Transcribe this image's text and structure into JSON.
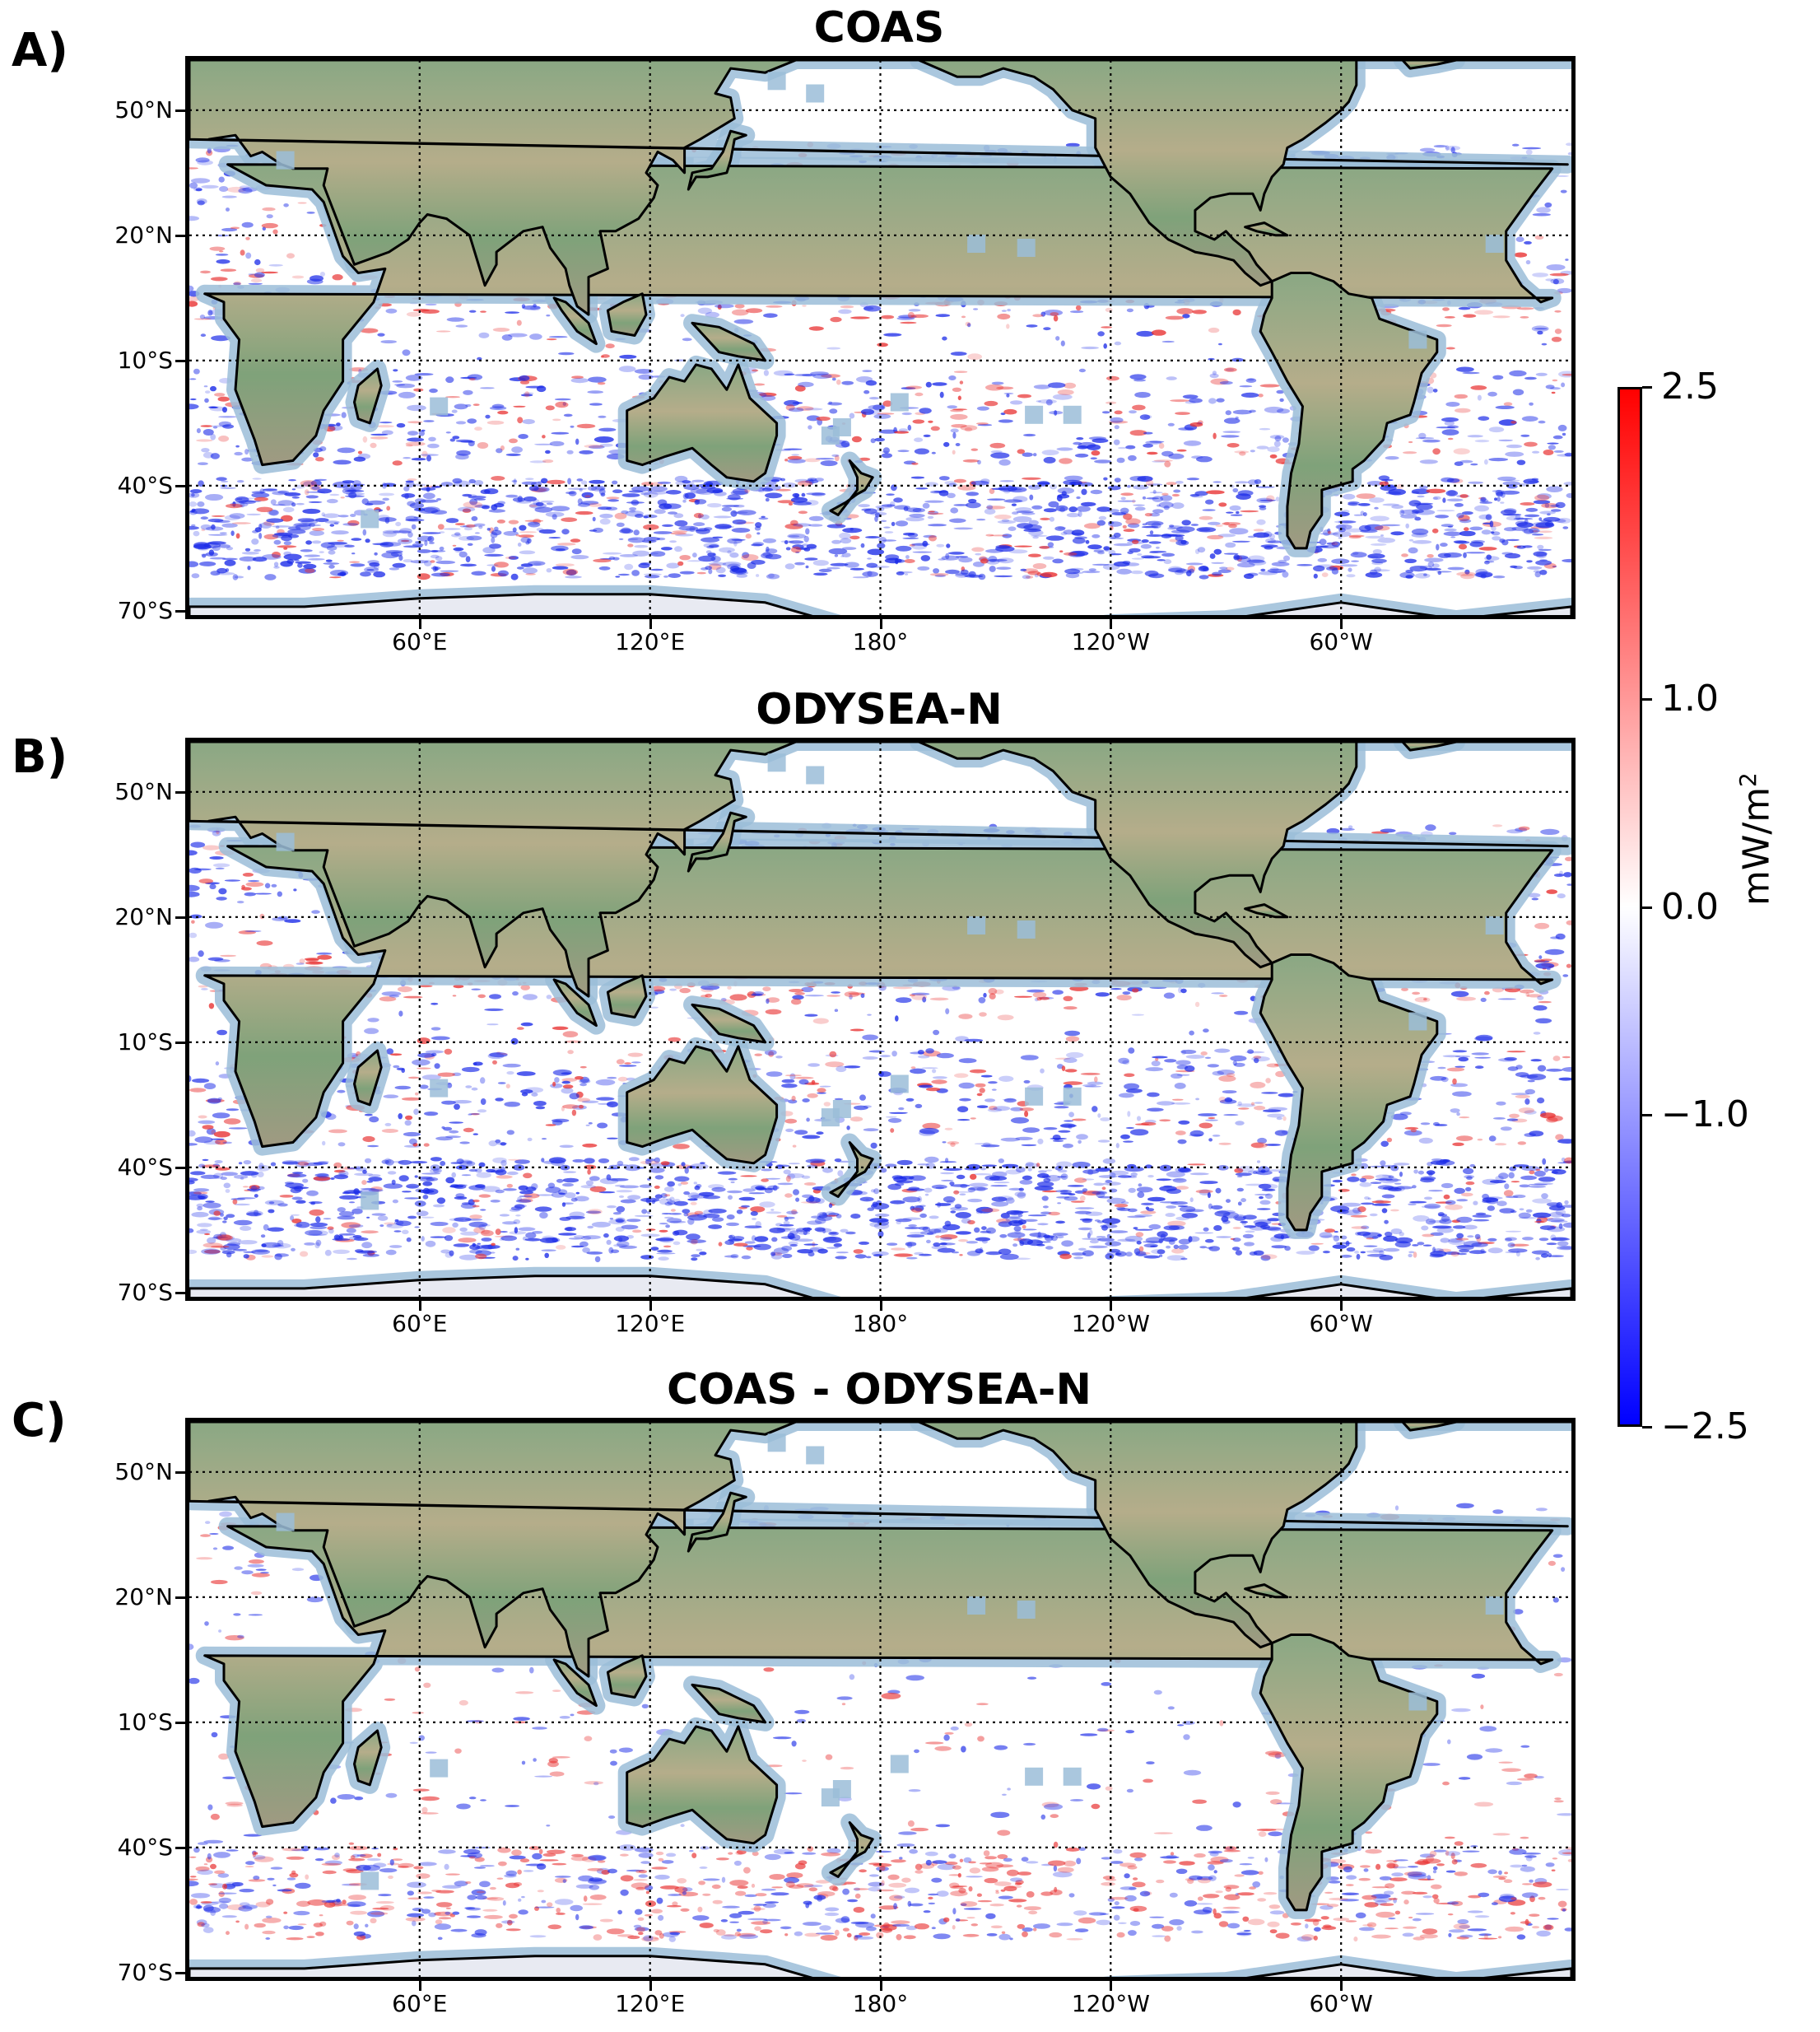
{
  "figure": {
    "panels": [
      {
        "letter": "A)",
        "title": "COAS",
        "field": "A"
      },
      {
        "letter": "B)",
        "title": "ODYSEA-N",
        "field": "B"
      },
      {
        "letter": "C)",
        "title": "COAS - ODYSEA-N",
        "field": "C"
      }
    ],
    "lat_labels": [
      "50°N",
      "20°N",
      "10°S",
      "40°S",
      "70°S"
    ],
    "lon_labels": [
      "60°E",
      "120°E",
      "180°",
      "120°W",
      "60°W"
    ],
    "colorbar": {
      "ticks": [
        "2.5",
        "1.0",
        "0.0",
        "−1.0",
        "−2.5"
      ],
      "tick_values": [
        2.5,
        1.0,
        0.0,
        -1.0,
        -2.5
      ],
      "range": [
        -2.5,
        2.5
      ],
      "unit_main": "mW/m",
      "unit_sup": "2",
      "colors": [
        "#0000ff",
        "#ffffff",
        "#ff0000"
      ]
    },
    "colors": {
      "land": "#a8a888",
      "land_green": "#7aa07a",
      "coast_buffer": "#9bbdd8",
      "ocean": "#ffffff"
    }
  }
}
